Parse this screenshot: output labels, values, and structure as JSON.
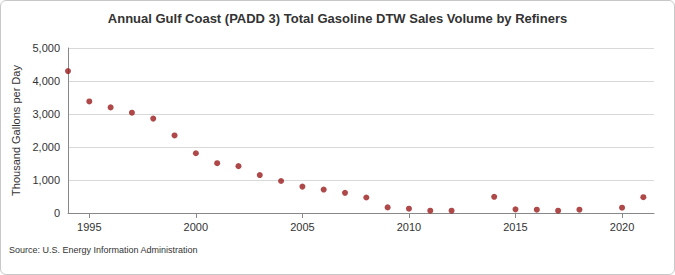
{
  "chart_data": {
    "type": "scatter",
    "title": "Annual Gulf Coast (PADD 3) Total Gasoline DTW Sales Volume by Refiners",
    "y_label": "Thousand Gallons per Day",
    "source": "Source: U.S. Energy Information Administration",
    "x": [
      1994,
      1995,
      1996,
      1997,
      1998,
      1999,
      2000,
      2001,
      2002,
      2003,
      2004,
      2005,
      2006,
      2007,
      2008,
      2009,
      2010,
      2011,
      2012,
      2013,
      2014,
      2015,
      2016,
      2017,
      2018,
      2019,
      2020,
      2021
    ],
    "values": [
      4300,
      3380,
      3200,
      3040,
      2860,
      2350,
      1810,
      1510,
      1420,
      1150,
      970,
      800,
      710,
      610,
      470,
      170,
      130,
      70,
      70,
      null,
      490,
      110,
      100,
      70,
      100,
      null,
      160,
      480
    ],
    "color": "#9b1c1c",
    "marker": "circle",
    "xlim": [
      1994,
      2021.5
    ],
    "xticks": [
      1995,
      2000,
      2005,
      2010,
      2015,
      2020
    ],
    "ylim": [
      0,
      5000
    ],
    "yticks": [
      0,
      {
        "value": 1000,
        "label": "1,000"
      },
      {
        "value": 2000,
        "label": "2,000"
      },
      {
        "value": 3000,
        "label": "3,000"
      },
      {
        "value": 4000,
        "label": "4,000"
      },
      {
        "value": 5000,
        "label": "5,000"
      }
    ],
    "grid": true
  }
}
